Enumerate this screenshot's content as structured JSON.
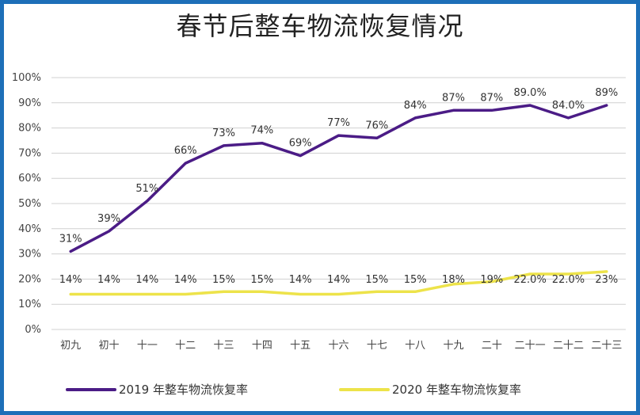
{
  "chart_data": {
    "type": "line",
    "title": "春节后整车物流恢复情况",
    "categories": [
      "初九",
      "初十",
      "十一",
      "十二",
      "十三",
      "十四",
      "十五",
      "十六",
      "十七",
      "十八",
      "十九",
      "二十",
      "二十一",
      "二十二",
      "二十三"
    ],
    "ylim": [
      0,
      100
    ],
    "yticks": [
      "0%",
      "10%",
      "20%",
      "30%",
      "40%",
      "50%",
      "60%",
      "70%",
      "80%",
      "90%",
      "100%"
    ],
    "grid": true,
    "legend_position": "bottom",
    "series": [
      {
        "name": "2019 年整车物流恢复率",
        "color": "#4b1c86",
        "values": [
          31,
          39,
          51,
          66,
          73,
          74,
          69,
          77,
          76,
          84,
          87,
          87,
          89,
          84,
          89
        ],
        "labels": [
          "31%",
          "39%",
          "51%",
          "66%",
          "73%",
          "74%",
          "69%",
          "77%",
          "76%",
          "84%",
          "87%",
          "87%",
          "89.0%",
          "84.0%",
          "89%"
        ]
      },
      {
        "name": "2020 年整车物流恢复率",
        "color": "#ede34a",
        "values": [
          14,
          14,
          14,
          14,
          15,
          15,
          14,
          14,
          15,
          15,
          18,
          19,
          22,
          22,
          23
        ],
        "labels": [
          "14%",
          "14%",
          "14%",
          "14%",
          "15%",
          "15%",
          "14%",
          "14%",
          "15%",
          "15%",
          "18%",
          "19%",
          "22.0%",
          "22.0%",
          "23%"
        ]
      }
    ]
  }
}
